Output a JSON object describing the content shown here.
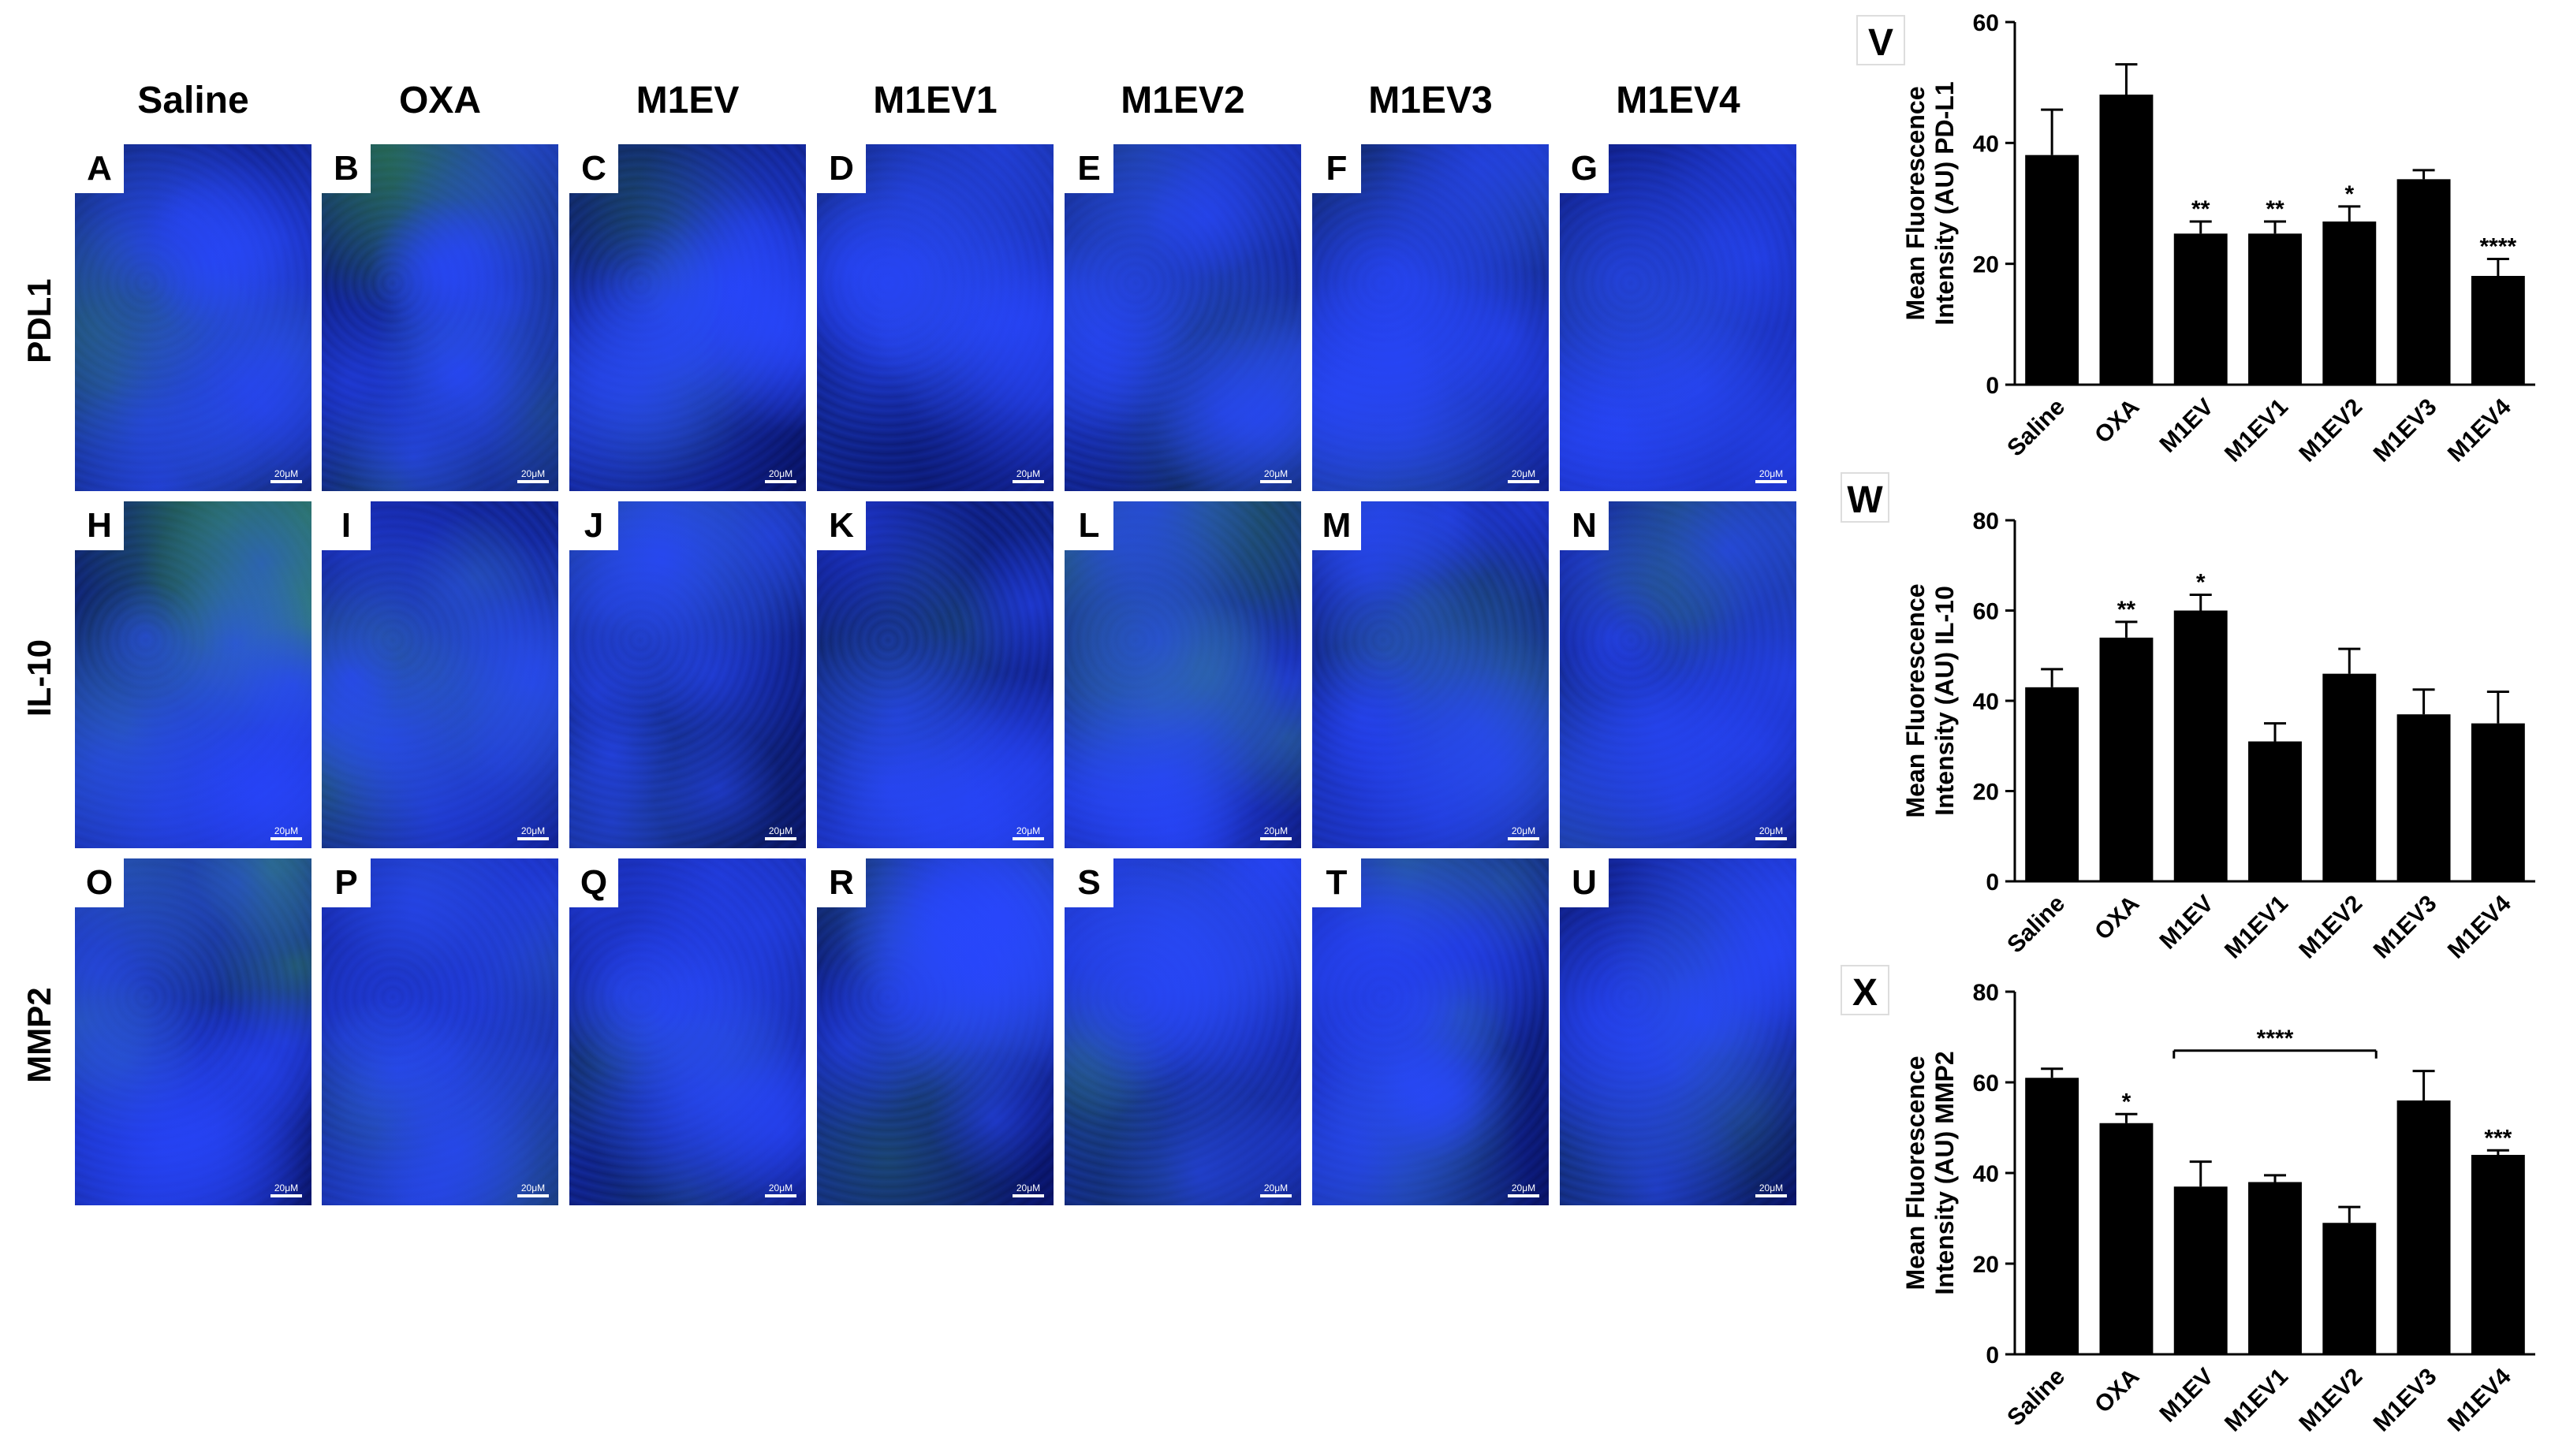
{
  "columns": [
    "Saline",
    "OXA",
    "M1EV",
    "M1EV1",
    "M1EV2",
    "M1EV3",
    "M1EV4"
  ],
  "rows": [
    {
      "label": "PDL1",
      "letters": [
        "A",
        "B",
        "C",
        "D",
        "E",
        "F",
        "G"
      ],
      "greens": [
        0.45,
        0.5,
        0.35,
        0.15,
        0.3,
        0.2,
        0.15
      ]
    },
    {
      "label": "IL-10",
      "letters": [
        "H",
        "I",
        "J",
        "K",
        "L",
        "M",
        "N"
      ],
      "greens": [
        0.9,
        0.55,
        0.25,
        0.2,
        0.8,
        0.45,
        0.4
      ]
    },
    {
      "label": "MMP2",
      "letters": [
        "O",
        "P",
        "Q",
        "R",
        "S",
        "T",
        "U"
      ],
      "greens": [
        0.75,
        0.4,
        0.3,
        0.45,
        0.35,
        0.6,
        0.35
      ]
    }
  ],
  "scalebar_label": "20μM",
  "colors": {
    "nucleus": "#1e2fd0",
    "stain": "#2faa3a",
    "bar": "#000000"
  },
  "chart_data": [
    {
      "type": "bar",
      "panel_label": "V",
      "ylabel_line1": "Mean Fluorescence",
      "ylabel_line2": "Intensity (AU) PD-L1",
      "categories": [
        "Saline",
        "OXA",
        "M1EV",
        "M1EV1",
        "M1EV2",
        "M1EV3",
        "M1EV4"
      ],
      "values": [
        38,
        48,
        25,
        25,
        27,
        34,
        18
      ],
      "errors": [
        7.5,
        5,
        2,
        2,
        2.5,
        1.5,
        2.8
      ],
      "significance": [
        "",
        "",
        "**",
        "**",
        "*",
        "",
        "****"
      ],
      "ylim": [
        0,
        60
      ],
      "yticks": [
        "0",
        "20",
        "40",
        "60"
      ],
      "bracket": null
    },
    {
      "type": "bar",
      "panel_label": "W",
      "ylabel_line1": "Mean Fluorescence",
      "ylabel_line2": "Intensity (AU) IL-10",
      "categories": [
        "Saline",
        "OXA",
        "M1EV",
        "M1EV1",
        "M1EV2",
        "M1EV3",
        "M1EV4"
      ],
      "values": [
        43,
        54,
        60,
        31,
        46,
        37,
        35
      ],
      "errors": [
        4,
        3.5,
        3.5,
        4,
        5.5,
        5.5,
        7
      ],
      "significance": [
        "",
        "**",
        "*",
        "",
        "",
        "",
        ""
      ],
      "ylim": [
        0,
        80
      ],
      "yticks": [
        "0",
        "20",
        "40",
        "60",
        "80"
      ],
      "bracket": null
    },
    {
      "type": "bar",
      "panel_label": "X",
      "ylabel_line1": "Mean Fluorescence",
      "ylabel_line2": "Intensity (AU) MMP2",
      "categories": [
        "Saline",
        "OXA",
        "M1EV",
        "M1EV1",
        "M1EV2",
        "M1EV3",
        "M1EV4"
      ],
      "values": [
        61,
        51,
        37,
        38,
        29,
        56,
        44
      ],
      "errors": [
        2,
        2,
        5.5,
        1.5,
        3.5,
        6.5,
        1
      ],
      "significance": [
        "",
        "*",
        "",
        "",
        "",
        "",
        "***"
      ],
      "ylim": [
        0,
        80
      ],
      "yticks": [
        "0",
        "20",
        "40",
        "60",
        "80"
      ],
      "bracket": {
        "from": 2,
        "to": 4,
        "value": 67,
        "label": "****"
      }
    }
  ]
}
